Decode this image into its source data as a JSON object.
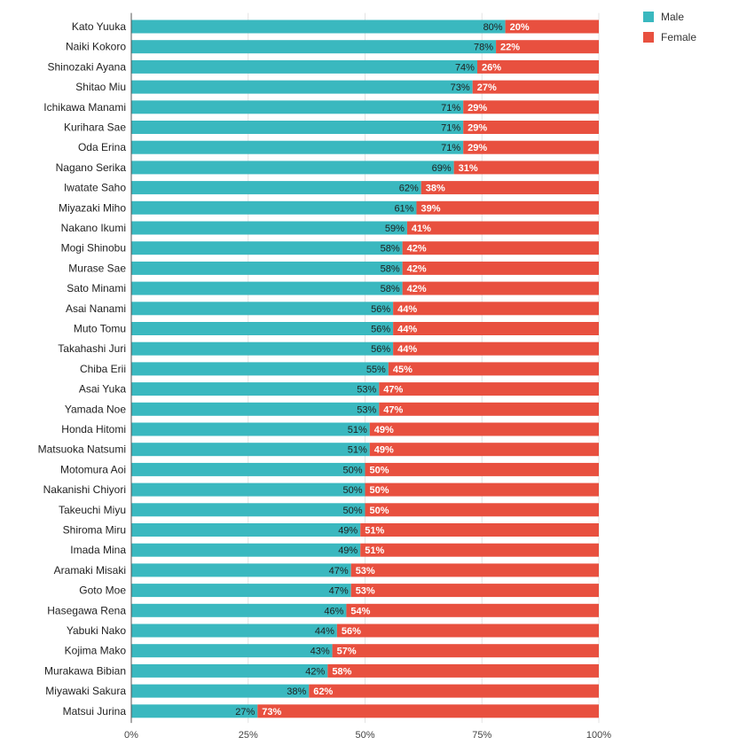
{
  "colors": {
    "male": "#3ab8bf",
    "female": "#e8503f",
    "grid": "#e3e3e3",
    "axis": "#555555"
  },
  "chart_data": {
    "type": "bar",
    "orientation": "horizontal",
    "stacked": "percent",
    "categories": [
      "Kato Yuuka",
      "Naiki Kokoro",
      "Shinozaki Ayana",
      "Shitao Miu",
      "Ichikawa Manami",
      "Kurihara Sae",
      "Oda Erina",
      "Nagano Serika",
      "Iwatate Saho",
      "Miyazaki Miho",
      "Nakano Ikumi",
      "Mogi Shinobu",
      "Murase Sae",
      "Sato Minami",
      "Asai Nanami",
      "Muto Tomu",
      "Takahashi Juri",
      "Chiba Erii",
      "Asai Yuka",
      "Yamada Noe",
      "Honda Hitomi",
      "Matsuoka Natsumi",
      "Motomura Aoi",
      "Nakanishi Chiyori",
      "Takeuchi Miyu",
      "Shiroma Miru",
      "Imada Mina",
      "Aramaki Misaki",
      "Goto Moe",
      "Hasegawa Rena",
      "Yabuki Nako",
      "Kojima Mako",
      "Murakawa Bibian",
      "Miyawaki Sakura",
      "Matsui Jurina"
    ],
    "series": [
      {
        "name": "Male",
        "values": [
          80,
          78,
          74,
          73,
          71,
          71,
          71,
          69,
          62,
          61,
          59,
          58,
          58,
          58,
          56,
          56,
          56,
          55,
          53,
          53,
          51,
          51,
          50,
          50,
          50,
          49,
          49,
          47,
          47,
          46,
          44,
          43,
          42,
          38,
          27
        ]
      },
      {
        "name": "Female",
        "values": [
          20,
          22,
          26,
          27,
          29,
          29,
          29,
          31,
          38,
          39,
          41,
          42,
          42,
          42,
          44,
          44,
          44,
          45,
          47,
          47,
          49,
          49,
          50,
          50,
          50,
          51,
          51,
          53,
          53,
          54,
          56,
          57,
          58,
          62,
          73
        ]
      }
    ],
    "value_labels": {
      "male": [
        "80%",
        "78%",
        "74%",
        "73%",
        "71%",
        "71%",
        "71%",
        "69%",
        "62%",
        "61%",
        "59%",
        "58%",
        "58%",
        "58%",
        "56%",
        "56%",
        "56%",
        "55%",
        "53%",
        "53%",
        "51%",
        "51%",
        "50%",
        "50%",
        "50%",
        "49%",
        "49%",
        "47%",
        "47%",
        "46%",
        "44%",
        "43%",
        "42%",
        "38%",
        "27%"
      ],
      "female": [
        "20%",
        "22%",
        "26%",
        "27%",
        "29%",
        "29%",
        "29%",
        "31%",
        "38%",
        "39%",
        "41%",
        "42%",
        "42%",
        "42%",
        "44%",
        "44%",
        "44%",
        "45%",
        "47%",
        "47%",
        "49%",
        "49%",
        "50%",
        "50%",
        "50%",
        "51%",
        "51%",
        "53%",
        "53%",
        "54%",
        "56%",
        "57%",
        "58%",
        "62%",
        "73%"
      ]
    },
    "x_ticks": [
      0,
      25,
      50,
      75,
      100
    ],
    "x_tick_labels": [
      "0%",
      "25%",
      "50%",
      "75%",
      "100%"
    ],
    "xlim": [
      0,
      100
    ],
    "grid": true,
    "legend": {
      "position": "top-right",
      "entries": [
        "Male",
        "Female"
      ]
    },
    "title": "",
    "xlabel": "",
    "ylabel": ""
  }
}
